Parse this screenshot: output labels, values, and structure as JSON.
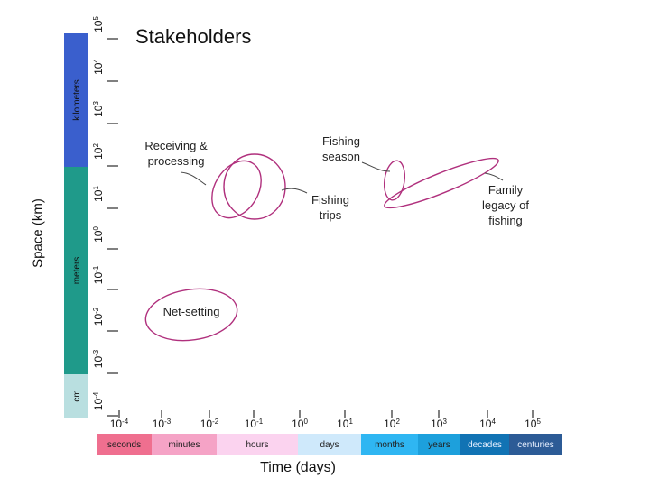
{
  "title": "Stakeholders",
  "axes": {
    "y_label": "Space (km)",
    "x_label": "Time (days)",
    "y_exponents": [
      "5",
      "4",
      "3",
      "2",
      "1",
      "0",
      "-1",
      "-2",
      "-3",
      "-4"
    ],
    "x_exponents": [
      "-4",
      "-3",
      "-2",
      "-1",
      "0",
      "1",
      "2",
      "3",
      "4",
      "5"
    ],
    "tick_base": "10"
  },
  "space_units": [
    {
      "label": "kilometers",
      "color": "#3a5fcd"
    },
    {
      "label": "meters",
      "color": "#1f9a8a"
    },
    {
      "label": "cm",
      "color": "#b9dfe0"
    }
  ],
  "time_units": [
    {
      "label": "seconds",
      "color": "#ef6f8f"
    },
    {
      "label": "minutes",
      "color": "#f5a3c6"
    },
    {
      "label": "hours",
      "color": "#fbd3ef"
    },
    {
      "label": "days",
      "color": "#cfe9fb"
    },
    {
      "label": "months",
      "color": "#2fb6f2"
    },
    {
      "label": "years",
      "color": "#1da0dc"
    },
    {
      "label": "decades",
      "color": "#1173b4"
    },
    {
      "label": "centuries",
      "color": "#2c5b96"
    }
  ],
  "stakeholders": [
    {
      "key": "receiving",
      "lines": [
        "Receiving &",
        "processing"
      ]
    },
    {
      "key": "fishing-season",
      "lines": [
        "Fishing",
        "season"
      ]
    },
    {
      "key": "fishing-trips",
      "lines": [
        "Fishing",
        "trips"
      ]
    },
    {
      "key": "family-legacy",
      "lines": [
        "Family",
        "legacy of",
        "fishing"
      ]
    },
    {
      "key": "net-setting",
      "lines": [
        "Net-setting"
      ]
    }
  ],
  "ellipse_color": "#b0307d"
}
